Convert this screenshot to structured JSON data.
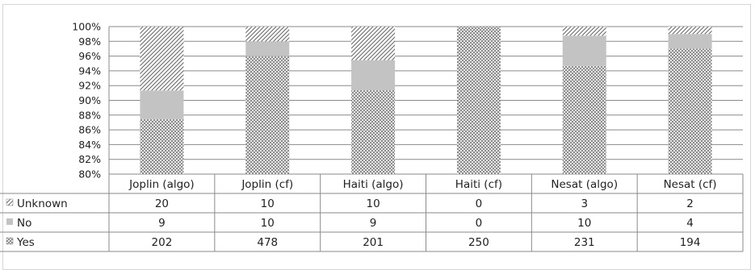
{
  "chart_data": {
    "type": "bar",
    "stacked": "percent",
    "categories": [
      "Joplin (algo)",
      "Joplin (cf)",
      "Haiti (algo)",
      "Haiti (cf)",
      "Nesat (algo)",
      "Nesat (cf)"
    ],
    "series": [
      {
        "name": "Unknown",
        "values": [
          20,
          10,
          10,
          0,
          3,
          2
        ],
        "pattern": "diagonal-hatch"
      },
      {
        "name": "No",
        "values": [
          9,
          10,
          9,
          0,
          10,
          4
        ],
        "pattern": "solid-gray",
        "color": "#c3c3c3"
      },
      {
        "name": "Yes",
        "values": [
          202,
          478,
          201,
          250,
          231,
          194
        ],
        "pattern": "checker"
      }
    ],
    "ylim": [
      80,
      100
    ],
    "yticks": [
      "80%",
      "82%",
      "84%",
      "86%",
      "88%",
      "90%",
      "92%",
      "94%",
      "96%",
      "98%",
      "100%"
    ],
    "grid": true,
    "legend": "data-table rows (left)",
    "data_table": true,
    "title": "",
    "xlabel": "",
    "ylabel": ""
  }
}
